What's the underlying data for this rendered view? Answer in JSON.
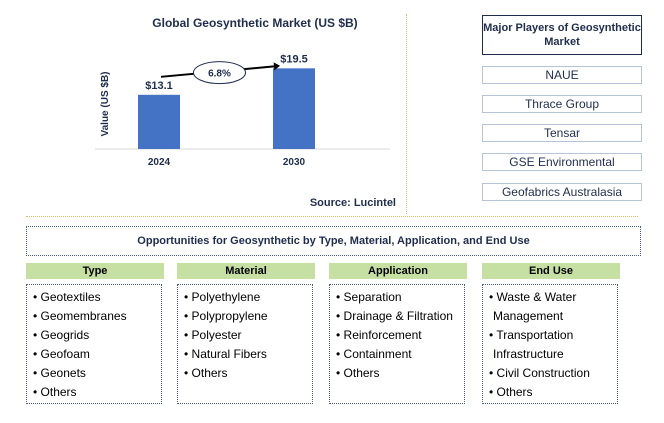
{
  "chart_data": {
    "type": "bar",
    "title": "Global Geosynthetic Market (US $B)",
    "ylabel": "Value (US $B)",
    "xlabel": "",
    "categories": [
      "2024",
      "2030"
    ],
    "values": [
      13.1,
      19.5
    ],
    "value_labels": [
      "$13.1",
      "$19.5"
    ],
    "ylim": [
      0,
      22
    ],
    "bar_color": "#4472c4",
    "annotation": {
      "text": "6.8%",
      "meaning": "growth arrow between bars"
    },
    "source": "Source: Lucintel"
  },
  "players": {
    "title": "Major Players of Geosynthetic Market",
    "items": [
      "NAUE",
      "Thrace Group",
      "Tensar",
      "GSE Environmental",
      "Geofabrics Australasia"
    ]
  },
  "opportunities": {
    "title": "Opportunities for Geosynthetic by Type, Material, Application, and End Use",
    "columns": [
      {
        "header": "Type",
        "items": [
          "• Geotextiles",
          "• Geomembranes",
          "• Geogrids",
          "• Geofoam",
          "• Geonets",
          "• Others"
        ]
      },
      {
        "header": "Material",
        "items": [
          "• Polyethylene",
          "• Polypropylene",
          "• Polyester",
          "• Natural Fibers",
          "• Others"
        ]
      },
      {
        "header": "Application",
        "items": [
          "• Separation",
          "• Drainage & Filtration",
          "• Reinforcement",
          "• Containment",
          "• Others"
        ]
      },
      {
        "header": "End Use",
        "items": [
          "• Waste & Water",
          "Management",
          "• Transportation",
          "Infrastructure",
          "• Civil Construction",
          "• Others"
        ]
      }
    ]
  },
  "colors": {
    "header_green": "#c6e0a4",
    "title_navy": "#1f2d4d",
    "bar_blue": "#4472c4"
  }
}
